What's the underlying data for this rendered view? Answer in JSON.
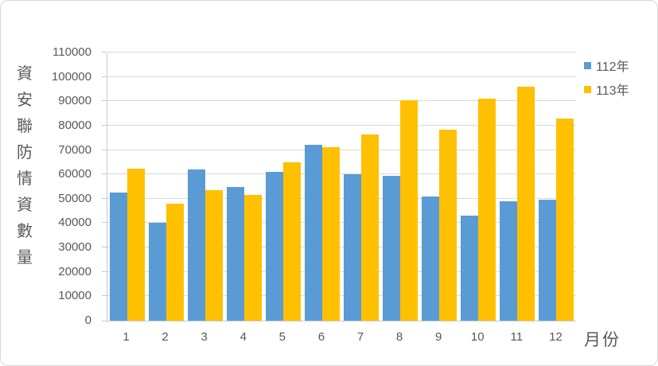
{
  "chart_data": {
    "type": "bar",
    "title": "",
    "y_axis_title": "資安聯防情資數量",
    "x_axis_title": "月份",
    "categories": [
      "1",
      "2",
      "3",
      "4",
      "5",
      "6",
      "7",
      "8",
      "9",
      "10",
      "11",
      "12"
    ],
    "series": [
      {
        "name": "112年",
        "color": "#5B9BD5",
        "values": [
          52500,
          40000,
          62000,
          55000,
          61000,
          72000,
          60000,
          59500,
          51000,
          43000,
          49000,
          49500
        ]
      },
      {
        "name": "113年",
        "color": "#FFC000",
        "values": [
          62500,
          48000,
          53500,
          51500,
          65000,
          71000,
          76500,
          90500,
          78500,
          91000,
          96000,
          83000
        ]
      }
    ],
    "ylim": [
      0,
      110000
    ],
    "y_tick_step": 10000,
    "y_ticks": [
      "0",
      "10000",
      "20000",
      "30000",
      "40000",
      "50000",
      "60000",
      "70000",
      "80000",
      "90000",
      "100000",
      "110000"
    ],
    "grid": "horizontal",
    "legend_position": "top-right"
  },
  "colors": {
    "series_112": "#5B9BD5",
    "series_113": "#FFC000",
    "gridline": "#D9D9D9",
    "axis_line": "#C9C9C9",
    "text": "#595959",
    "frame_border": "#D9D9D9",
    "background": "#FFFFFF"
  }
}
